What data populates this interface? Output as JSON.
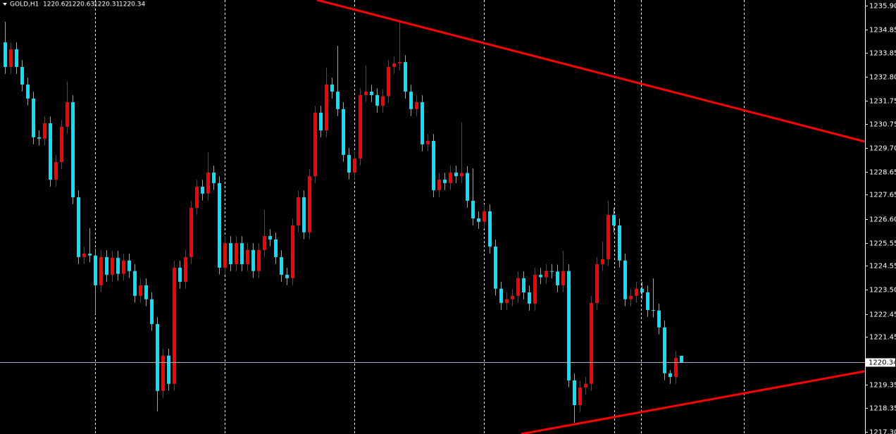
{
  "chart_data": {
    "type": "candlestick",
    "symbol": "GOLD,H1",
    "bull_color": "#ff0000",
    "bear_color": "#00e5ff",
    "ylim": [
      1217.21,
      1236.15
    ],
    "yticks": [
      {
        "value": 1235.9,
        "label": "1235.90"
      },
      1234.85,
      1233.85,
      {
        "value": 1232.8,
        "label": "1232.80"
      },
      1231.75,
      1230.75,
      {
        "value": 1229.7,
        "label": "1229.70"
      },
      1228.65,
      1227.65,
      {
        "value": 1226.6,
        "label": "1226.60"
      },
      1225.55,
      1224.55,
      {
        "value": 1223.5,
        "label": "1223.50"
      },
      1222.45,
      1221.45,
      1219.35,
      1218.35,
      {
        "value": 1217.3,
        "label": "1217.30"
      }
    ],
    "open": [
      1234.3,
      1233.23,
      1234.0,
      1233.23,
      1232.46,
      1231.85,
      1230.16,
      1230.1,
      1230.77,
      1228.31,
      1229.08,
      1230.62,
      1231.69,
      1227.54,
      1224.93,
      1225.08,
      1225.0,
      1223.7,
      1224.93,
      1224.16,
      1224.9,
      1224.2,
      1224.78,
      1224.32,
      1223.24,
      1223.7,
      1223.09,
      1222.01,
      1219.09,
      1220.63,
      1219.4,
      1224.47,
      1223.85,
      1224.93,
      1227.08,
      1228.0,
      1227.7,
      1228.62,
      1228.16,
      1224.47,
      1225.54,
      1224.62,
      1225.54,
      1224.62,
      1225.24,
      1224.32,
      1225.24,
      1225.85,
      1225.7,
      1224.93,
      1224.16,
      1224.01,
      1226.31,
      1227.54,
      1226.01,
      1228.46,
      1231.23,
      1230.46,
      1232.46,
      1232.15,
      1231.39,
      1229.39,
      1228.62,
      1229.23,
      1232.0,
      1232.15,
      1232.0,
      1231.54,
      1231.95,
      1233.23,
      1233.38,
      1233.44,
      1232.15,
      1231.39,
      1231.69,
      1229.85,
      1230.0,
      1227.85,
      1228.31,
      1228.16,
      1228.62,
      1228.46,
      1228.6,
      1227.39,
      1226.62,
      1226.47,
      1226.93,
      1225.39,
      1223.55,
      1222.93,
      1223.09,
      1223.24,
      1224.01,
      1223.39,
      1222.9,
      1224.16,
      1224.05,
      1224.32,
      1224.3,
      1223.7,
      1224.32,
      1219.55,
      1218.47,
      1219.24,
      1219.4,
      1222.93,
      1224.62,
      1224.84,
      1226.77,
      1226.31,
      1224.78,
      1223.09,
      1223.24,
      1223.55,
      1223.39,
      1222.62,
      1222.6,
      1221.86,
      1219.86,
      1219.7,
      1220.62
    ],
    "high": [
      1235.2,
      1234.3,
      1234.3,
      1233.53,
      1232.76,
      1232.15,
      1230.46,
      1231.07,
      1231.07,
      1229.38,
      1230.92,
      1232.6,
      1231.99,
      1227.84,
      1225.38,
      1226.2,
      1225.3,
      1225.23,
      1225.23,
      1225.2,
      1225.2,
      1225.08,
      1225.08,
      1224.62,
      1224.0,
      1224.0,
      1223.39,
      1222.31,
      1220.93,
      1220.93,
      1224.77,
      1224.77,
      1225.23,
      1227.38,
      1228.3,
      1228.3,
      1229.5,
      1228.92,
      1228.46,
      1225.84,
      1225.84,
      1225.84,
      1225.84,
      1225.54,
      1225.54,
      1225.54,
      1227.0,
      1226.15,
      1226.0,
      1225.23,
      1224.46,
      1226.61,
      1227.84,
      1227.84,
      1228.76,
      1231.53,
      1231.53,
      1233.2,
      1232.76,
      1234.15,
      1231.69,
      1229.69,
      1229.53,
      1232.3,
      1233.3,
      1232.45,
      1232.3,
      1232.25,
      1233.53,
      1233.68,
      1235.2,
      1233.74,
      1232.45,
      1231.99,
      1231.99,
      1230.3,
      1230.3,
      1228.61,
      1228.61,
      1228.92,
      1228.92,
      1230.8,
      1228.9,
      1228.8,
      1226.92,
      1227.23,
      1227.23,
      1225.69,
      1223.85,
      1223.39,
      1223.54,
      1224.31,
      1224.31,
      1223.69,
      1224.46,
      1224.46,
      1224.62,
      1224.62,
      1224.6,
      1225.2,
      1224.62,
      1219.85,
      1219.54,
      1219.7,
      1223.23,
      1224.92,
      1225.6,
      1227.4,
      1227.07,
      1226.61,
      1225.08,
      1223.54,
      1223.85,
      1223.85,
      1223.69,
      1224.0,
      1222.9,
      1222.16,
      1220.0,
      1220.83,
      1220.63
    ],
    "low": [
      1232.93,
      1232.93,
      1232.93,
      1232.16,
      1231.55,
      1229.86,
      1229.8,
      1229.8,
      1228.01,
      1228.01,
      1228.78,
      1230.32,
      1227.24,
      1224.63,
      1224.63,
      1224.7,
      1222.45,
      1223.4,
      1223.86,
      1223.86,
      1223.9,
      1223.9,
      1224.02,
      1222.94,
      1222.94,
      1222.79,
      1221.71,
      1218.2,
      1218.79,
      1219.1,
      1219.1,
      1223.55,
      1223.55,
      1224.63,
      1226.78,
      1227.4,
      1227.4,
      1227.86,
      1224.17,
      1224.17,
      1224.32,
      1224.32,
      1224.32,
      1224.32,
      1224.02,
      1224.02,
      1224.94,
      1225.4,
      1224.63,
      1223.86,
      1223.71,
      1223.71,
      1226.01,
      1225.71,
      1225.71,
      1228.16,
      1230.16,
      1230.16,
      1231.85,
      1231.09,
      1229.09,
      1228.32,
      1228.32,
      1228.93,
      1231.7,
      1231.7,
      1231.24,
      1231.24,
      1231.65,
      1232.93,
      1233.08,
      1231.85,
      1231.09,
      1231.09,
      1229.55,
      1229.55,
      1227.55,
      1227.55,
      1227.86,
      1227.86,
      1228.16,
      1228.16,
      1227.09,
      1226.32,
      1226.17,
      1226.17,
      1225.09,
      1223.25,
      1222.63,
      1222.63,
      1222.79,
      1222.94,
      1223.09,
      1222.6,
      1222.6,
      1223.75,
      1223.75,
      1224.0,
      1223.4,
      1223.4,
      1219.25,
      1217.7,
      1218.17,
      1218.94,
      1219.1,
      1222.63,
      1224.32,
      1224.54,
      1226.01,
      1224.48,
      1222.79,
      1222.79,
      1222.94,
      1223.09,
      1222.32,
      1222.3,
      1221.56,
      1219.56,
      1219.4,
      1219.4,
      1220.31
    ],
    "close": [
      1233.23,
      1234.0,
      1233.23,
      1232.46,
      1231.85,
      1230.16,
      1230.1,
      1230.77,
      1228.31,
      1229.08,
      1230.62,
      1231.69,
      1227.54,
      1224.93,
      1225.08,
      1225.0,
      1223.7,
      1224.93,
      1224.16,
      1224.9,
      1224.2,
      1224.78,
      1224.32,
      1223.24,
      1223.7,
      1223.09,
      1222.01,
      1219.09,
      1220.63,
      1219.4,
      1224.47,
      1223.85,
      1224.93,
      1227.08,
      1228.0,
      1227.7,
      1228.62,
      1228.16,
      1224.47,
      1225.54,
      1224.62,
      1225.54,
      1224.62,
      1225.24,
      1224.32,
      1225.24,
      1225.85,
      1225.7,
      1224.93,
      1224.16,
      1224.01,
      1226.31,
      1227.54,
      1226.01,
      1228.46,
      1231.23,
      1230.46,
      1232.46,
      1232.15,
      1231.39,
      1229.39,
      1228.62,
      1229.23,
      1232.0,
      1232.15,
      1232.0,
      1231.54,
      1231.95,
      1233.23,
      1233.38,
      1233.44,
      1232.15,
      1231.39,
      1231.69,
      1229.85,
      1230.0,
      1227.85,
      1228.31,
      1228.16,
      1228.62,
      1228.46,
      1228.6,
      1227.39,
      1226.62,
      1226.47,
      1226.93,
      1225.39,
      1223.55,
      1222.93,
      1223.09,
      1223.24,
      1224.01,
      1223.39,
      1222.9,
      1224.16,
      1224.05,
      1224.32,
      1224.3,
      1223.7,
      1224.32,
      1219.55,
      1218.47,
      1219.24,
      1219.4,
      1222.93,
      1224.62,
      1224.84,
      1226.77,
      1226.31,
      1224.78,
      1223.09,
      1223.24,
      1223.55,
      1223.39,
      1222.62,
      1222.6,
      1221.86,
      1219.86,
      1219.7,
      1220.53,
      1220.34
    ],
    "trendlines": [
      {
        "x": [
          55.4,
          152.6
        ],
        "y": [
          1236.15,
          1229.97
        ],
        "color": "#ff0000"
      },
      {
        "x": [
          91.6,
          152.6
        ],
        "y": [
          1217.21,
          1219.95
        ],
        "color": "#ff0000"
      }
    ]
  }
}
